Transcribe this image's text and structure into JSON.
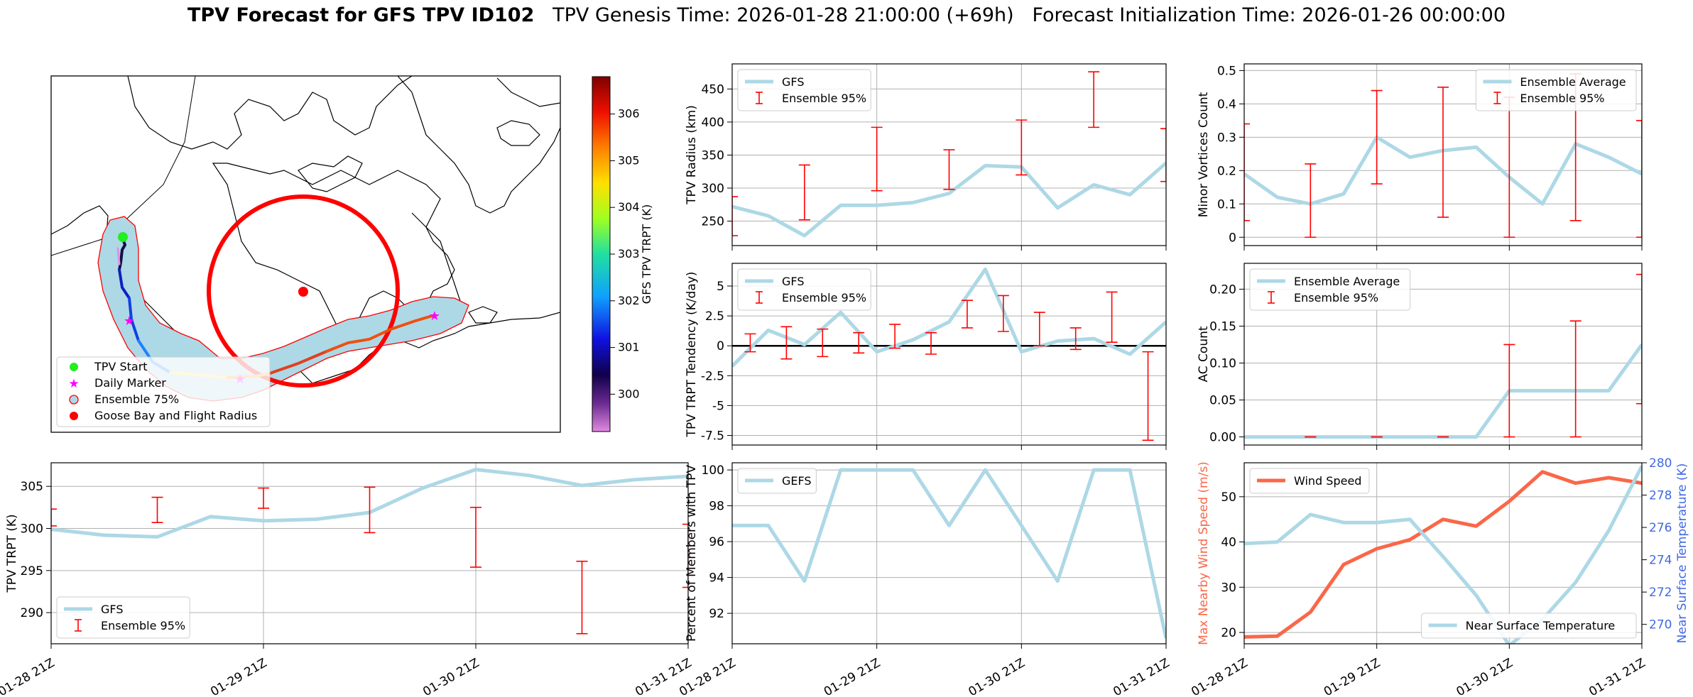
{
  "figure": {
    "title_bold": "TPV Forecast for GFS TPV ID102",
    "title_genesis": "TPV Genesis Time: 2026-01-28 21:00:00 (+69h)",
    "title_init": "Forecast Initialization Time: 2026-01-26 00:00:00"
  },
  "colors": {
    "gfs_line": "#add8e6",
    "errorbar": "#ff0000",
    "wind": "#fa6748",
    "temp_axis": "#4169e1",
    "ensemble_fill": "#add8e6",
    "goose_bay": "#ff0000"
  },
  "map": {
    "colorbar_label": "GFS TPV TRPT (K)",
    "colorbar_ticks": [
      300,
      301,
      302,
      303,
      304,
      305,
      306
    ],
    "colorbar_range": [
      299.2,
      306.8
    ],
    "legend": {
      "start": "TPV Start",
      "daily": "Daily Marker",
      "ensemble": "Ensemble 75%",
      "goose": "Goose Bay and Flight Radius"
    }
  },
  "x_tick_labels": [
    "01-28 21Z",
    "01-29 21Z",
    "01-30 21Z",
    "01-31 21Z"
  ],
  "chart_data": [
    {
      "id": "radius",
      "type": "line",
      "ylabel": "TPV Radius (km)",
      "ylim": [
        213,
        488
      ],
      "yticks": [
        250,
        300,
        350,
        400,
        450
      ],
      "legend": [
        "GFS",
        "Ensemble 95%"
      ],
      "legend_loc": "upper-left",
      "x_hours": [
        0,
        6,
        12,
        18,
        24,
        30,
        36,
        42,
        48,
        54,
        60,
        66,
        72
      ],
      "values": [
        272,
        258,
        228,
        274,
        274,
        278,
        292,
        334,
        332,
        270,
        305,
        290,
        338
      ],
      "errorbars": [
        {
          "x": 0,
          "low": 228,
          "high": 287
        },
        {
          "x": 12,
          "low": 252,
          "high": 335
        },
        {
          "x": 24,
          "low": 296,
          "high": 392
        },
        {
          "x": 36,
          "low": 298,
          "high": 358
        },
        {
          "x": 48,
          "low": 320,
          "high": 403
        },
        {
          "x": 60,
          "low": 392,
          "high": 476
        },
        {
          "x": 72,
          "low": 310,
          "high": 390
        }
      ]
    },
    {
      "id": "tendency",
      "type": "line",
      "ylabel": "TPV TRPT Tendency (K/day)",
      "ylim": [
        -8.3,
        6.9
      ],
      "yticks": [
        -7.5,
        -5.0,
        -2.5,
        0.0,
        2.5,
        5.0
      ],
      "zero_line": true,
      "legend": [
        "GFS",
        "Ensemble 95%"
      ],
      "legend_loc": "upper-left",
      "x_hours": [
        0,
        6,
        12,
        18,
        24,
        30,
        36,
        42,
        48,
        54,
        60,
        66,
        72
      ],
      "values": [
        -1.7,
        1.3,
        0.1,
        2.8,
        -0.5,
        0.5,
        2.0,
        6.4,
        -0.5,
        0.4,
        0.6,
        -0.7,
        2.0
      ],
      "errorbars": [
        {
          "x": 3,
          "low": -0.5,
          "high": 1.0
        },
        {
          "x": 9,
          "low": -1.1,
          "high": 1.6
        },
        {
          "x": 15,
          "low": -0.9,
          "high": 1.4
        },
        {
          "x": 21,
          "low": -0.6,
          "high": 1.1
        },
        {
          "x": 27,
          "low": -0.2,
          "high": 1.8
        },
        {
          "x": 33,
          "low": -0.7,
          "high": 1.1
        },
        {
          "x": 39,
          "low": 1.5,
          "high": 3.8
        },
        {
          "x": 45,
          "low": 1.2,
          "high": 4.2
        },
        {
          "x": 51,
          "low": 0.0,
          "high": 2.8
        },
        {
          "x": 57,
          "low": -0.3,
          "high": 1.5
        },
        {
          "x": 63,
          "low": 0.3,
          "high": 4.5
        },
        {
          "x": 69,
          "low": -7.9,
          "high": -0.5
        }
      ]
    },
    {
      "id": "trpt",
      "type": "line",
      "ylabel": "TPV TRPT (K)",
      "ylim": [
        286.3,
        307.8
      ],
      "yticks": [
        290,
        295,
        300,
        305
      ],
      "legend": [
        "GFS",
        "Ensemble 95%"
      ],
      "legend_loc": "lower-left",
      "x_hours": [
        0,
        6,
        12,
        18,
        24,
        30,
        36,
        42,
        48,
        54,
        60,
        66,
        72
      ],
      "values": [
        299.9,
        299.2,
        299.0,
        301.4,
        300.9,
        301.1,
        301.9,
        304.8,
        307.0,
        306.3,
        305.1,
        305.8,
        306.2
      ],
      "errorbars": [
        {
          "x": 0,
          "low": 300.3,
          "high": 302.3
        },
        {
          "x": 12,
          "low": 300.7,
          "high": 303.7
        },
        {
          "x": 24,
          "low": 302.4,
          "high": 304.8
        },
        {
          "x": 36,
          "low": 299.5,
          "high": 304.9
        },
        {
          "x": 48,
          "low": 295.4,
          "high": 302.5
        },
        {
          "x": 60,
          "low": 287.5,
          "high": 296.1
        },
        {
          "x": 72,
          "low": 293.0,
          "high": 300.5
        }
      ]
    },
    {
      "id": "percent",
      "type": "line",
      "ylabel": "Percent of Members with TPV",
      "ylim": [
        90.3,
        100.4
      ],
      "yticks": [
        92,
        94,
        96,
        98,
        100
      ],
      "legend": [
        "GEFS"
      ],
      "legend_loc": "upper-left",
      "x_hours": [
        0,
        6,
        12,
        18,
        24,
        30,
        36,
        42,
        48,
        54,
        60,
        66,
        72
      ],
      "values": [
        96.9,
        96.9,
        93.8,
        100,
        100,
        100,
        96.9,
        100,
        96.9,
        93.8,
        100,
        100,
        90.6
      ],
      "errorbars": []
    },
    {
      "id": "minor",
      "type": "line",
      "ylabel": "Minor Vortices Count",
      "ylim": [
        -0.025,
        0.52
      ],
      "yticks": [
        0.0,
        0.1,
        0.2,
        0.3,
        0.4,
        0.5
      ],
      "legend": [
        "Ensemble Average",
        "Ensemble 95%"
      ],
      "legend_loc": "upper-right",
      "x_hours": [
        0,
        6,
        12,
        18,
        24,
        30,
        36,
        42,
        48,
        54,
        60,
        66,
        72
      ],
      "values": [
        0.19,
        0.12,
        0.1,
        0.13,
        0.3,
        0.24,
        0.26,
        0.27,
        0.18,
        0.1,
        0.28,
        0.24,
        0.19
      ],
      "errorbars": [
        {
          "x": 0,
          "low": 0.05,
          "high": 0.34
        },
        {
          "x": 12,
          "low": 0.0,
          "high": 0.22
        },
        {
          "x": 24,
          "low": 0.16,
          "high": 0.44
        },
        {
          "x": 36,
          "low": 0.06,
          "high": 0.45
        },
        {
          "x": 48,
          "low": 0.0,
          "high": 0.42
        },
        {
          "x": 60,
          "low": 0.05,
          "high": 0.49
        },
        {
          "x": 72,
          "low": 0.0,
          "high": 0.35
        }
      ]
    },
    {
      "id": "ac",
      "type": "line",
      "ylabel": "AC Count",
      "ylim": [
        -0.011,
        0.235
      ],
      "yticks": [
        0.0,
        0.05,
        0.1,
        0.15,
        0.2
      ],
      "ytick_labels": [
        "0.00",
        "0.05",
        "0.10",
        "0.15",
        "0.20"
      ],
      "legend": [
        "Ensemble Average",
        "Ensemble 95%"
      ],
      "legend_loc": "upper-left",
      "x_hours": [
        0,
        6,
        12,
        18,
        24,
        30,
        36,
        42,
        48,
        54,
        60,
        66,
        72
      ],
      "values": [
        0,
        0,
        0,
        0,
        0,
        0,
        0,
        0,
        0.0625,
        0.0625,
        0.0625,
        0.0625,
        0.125
      ],
      "errorbars": [
        {
          "x": 12,
          "low": 0.0,
          "high": 0.0
        },
        {
          "x": 24,
          "low": 0.0,
          "high": 0.0
        },
        {
          "x": 36,
          "low": 0.0,
          "high": 0.0
        },
        {
          "x": 48,
          "low": 0.0,
          "high": 0.125
        },
        {
          "x": 60,
          "low": 0.0,
          "high": 0.157
        },
        {
          "x": 72,
          "low": 0.045,
          "high": 0.22
        }
      ]
    },
    {
      "id": "wind_temp",
      "type": "line",
      "dual_axis": true,
      "ylabel": "Max Nearby Wind Speed (m/s)",
      "ylabel_right": "Near Surface Temperature (K)",
      "ylim": [
        17.5,
        57.5
      ],
      "yticks": [
        20,
        30,
        40,
        50
      ],
      "ylim_right": [
        268.8,
        280
      ],
      "yticks_right": [
        270,
        272,
        274,
        276,
        278,
        280
      ],
      "legend": [
        "Wind Speed"
      ],
      "legend_right": [
        "Near Surface Temperature"
      ],
      "x_hours": [
        0,
        6,
        12,
        18,
        24,
        30,
        36,
        42,
        48,
        54,
        60,
        66,
        72
      ],
      "series": [
        {
          "name": "Wind Speed",
          "values": [
            19,
            19.2,
            24.5,
            35,
            38.5,
            40.5,
            45,
            43.5,
            49,
            55.5,
            53,
            54.2,
            53
          ]
        },
        {
          "name": "Near Surface Temperature",
          "values": [
            275.0,
            275.1,
            276.8,
            276.3,
            276.3,
            276.5,
            274.2,
            271.8,
            268.7,
            270.3,
            272.6,
            275.8,
            279.8
          ]
        }
      ]
    }
  ]
}
